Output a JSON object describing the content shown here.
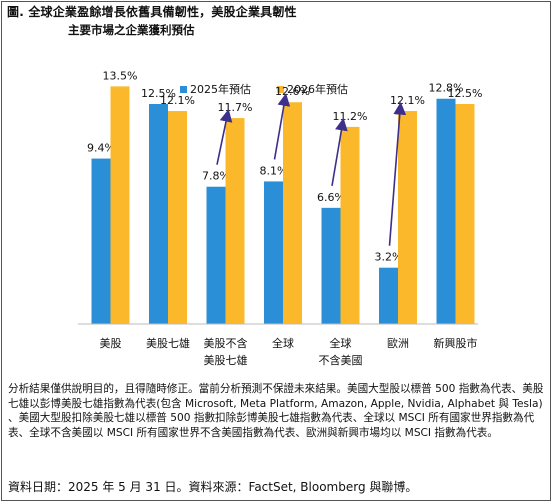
{
  "title": "圖. 全球企業盈餘增長依舊具備韌性，美股企業具韌性",
  "subtitle": "主要市場之企業獲利預估",
  "colors": {
    "series_2025": "#2b8fd8",
    "series_2026": "#fbb82a",
    "arrow": "#3d2f8c"
  },
  "chart_data": {
    "type": "bar",
    "categories": [
      [
        "美股"
      ],
      [
        "美股七雄"
      ],
      [
        "美股不含",
        "美股七雄"
      ],
      [
        "全球"
      ],
      [
        "全球",
        "不含美國"
      ],
      [
        "歐洲"
      ],
      [
        "新興股市"
      ]
    ],
    "series": [
      {
        "name": "2025年預估",
        "values": [
          9.4,
          12.5,
          7.8,
          8.1,
          6.6,
          3.2,
          12.8
        ],
        "labels": [
          "9.4%",
          "12.5%",
          "7.8%",
          "8.1%",
          "6.6%",
          "3.2%",
          "12.8%"
        ]
      },
      {
        "name": "2026年預估",
        "values": [
          13.5,
          12.1,
          11.7,
          12.6,
          11.2,
          12.1,
          12.5
        ],
        "labels": [
          "13.5%",
          "12.1%",
          "11.7%",
          "12.6%",
          "11.2%",
          "12.1%",
          "12.5%"
        ]
      }
    ],
    "arrows_on_categories": [
      2,
      3,
      4,
      5
    ],
    "ylim": [
      0,
      15
    ],
    "grid": false,
    "legend": "top-center"
  },
  "note": "分析結果僅供說明目的，且得隨時修正。當前分析預測不保證未來結果。美國大型股以標普 500 指數為代表、美股七雄以彭博美股七雄指數為代表(包含 Microsoft, Meta Platform, Amazon, Apple, Nvidia, Alphabet 與 Tesla) 、美國大型股扣除美股七雄以標普 500 指數扣除彭博美股七雄指數為代表、全球以 MSCI 所有國家世界指數為代表、全球不含美國以 MSCI 所有國家世界不含美國指數為代表、歐洲與新興市場均以 MSCI 指數為代表。",
  "source": "資料日期：2025 年 5 月 31 日。資料來源：FactSet, Bloomberg 與聯博。"
}
